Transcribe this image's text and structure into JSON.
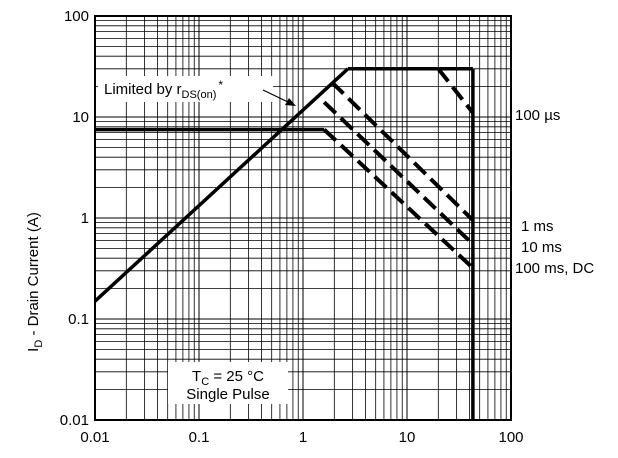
{
  "chart_data": {
    "type": "line",
    "title": "",
    "xscale": "log",
    "yscale": "log",
    "xlim": [
      0.01,
      100
    ],
    "ylim": [
      0.01,
      100
    ],
    "grid": true,
    "ylabel": {
      "main": "I",
      "sub": "D",
      "rest": " - Drain Current (A)"
    },
    "xticks": [
      "0.01",
      "0.1",
      "1",
      "10",
      "100"
    ],
    "yticks": [
      "0.01",
      "0.1",
      "1",
      "10",
      "100"
    ],
    "series": [
      {
        "style": "solid",
        "role": "rds-limit",
        "x": [
          0.01,
          2.7
        ],
        "y": [
          0.15,
          30
        ]
      },
      {
        "style": "solid",
        "role": "current-limit-pulse",
        "x": [
          2.7,
          43
        ],
        "y": [
          30,
          30
        ]
      },
      {
        "style": "solid",
        "role": "current-limit-dc",
        "x": [
          0.01,
          1.6
        ],
        "y": [
          7.5,
          7.5
        ]
      },
      {
        "style": "solid",
        "role": "voltage-limit",
        "x": [
          43,
          43
        ],
        "y": [
          30,
          0.01
        ]
      },
      {
        "style": "dashed",
        "label_index": 0,
        "x": [
          20,
          43
        ],
        "y": [
          30,
          11
        ]
      },
      {
        "style": "dashed",
        "label_index": 1,
        "x": [
          1.9,
          43
        ],
        "y": [
          22,
          0.95
        ]
      },
      {
        "style": "dashed",
        "label_index": 2,
        "x": [
          1.6,
          43
        ],
        "y": [
          14,
          0.55
        ]
      },
      {
        "style": "dashed",
        "label_index": 3,
        "x": [
          1.6,
          43
        ],
        "y": [
          7.5,
          0.32
        ]
      }
    ],
    "curve_labels": [
      "100 µs",
      "1 ms",
      "10 ms",
      "100 ms, DC"
    ],
    "annotations": {
      "limited_prefix": "Limited by r",
      "limited_sub": "DS(on)",
      "limited_suffix": "*",
      "conditions_line1_main": "T",
      "conditions_line1_sub": "C",
      "conditions_line1_rest": " = 25 °C",
      "conditions_line2": "Single Pulse"
    }
  }
}
